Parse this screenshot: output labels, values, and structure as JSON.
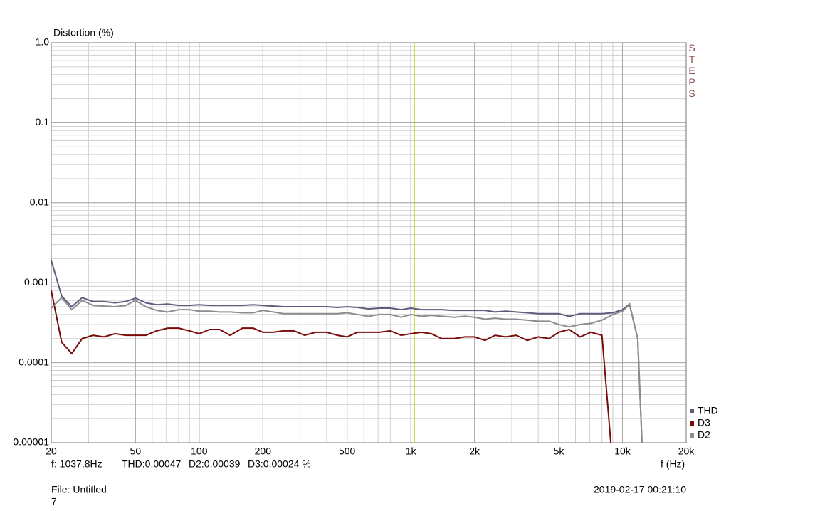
{
  "chart_data": {
    "type": "line",
    "title": "Distortion (%)",
    "x_label": "f (Hz)",
    "side_label": "STEPS",
    "log_x": true,
    "log_y": true,
    "grid": true,
    "minor_grid": true,
    "xlim": [
      20,
      20000
    ],
    "ylim": [
      1e-05,
      1
    ],
    "xticks": [
      20,
      50,
      100,
      200,
      500,
      {
        "value": 1000,
        "label": "1k"
      },
      {
        "value": 2000,
        "label": "2k"
      },
      {
        "value": 5000,
        "label": "5k"
      },
      {
        "value": 10000,
        "label": "10k"
      },
      {
        "value": 20000,
        "label": "20k"
      }
    ],
    "yticks": [
      {
        "value": 1,
        "label": "1.0"
      },
      0.1,
      0.01,
      0.001,
      0.0001,
      {
        "value": 1e-05,
        "label": "0.00001"
      }
    ],
    "cursor": 1037.8,
    "cursor_color": "#c8c800",
    "readout": [
      "f: 1037.8Hz",
      "THD:0.00047",
      "D2:0.00039",
      "D3:0.00024 %"
    ],
    "file": "File: Untitled",
    "file_index": "7",
    "timestamp": "2019-02-17 00:21:10",
    "legend": "bottom-right",
    "x": [
      20,
      22.4,
      25,
      28,
      31.5,
      35.5,
      40,
      45,
      50,
      56,
      63,
      71,
      80,
      90,
      100,
      112,
      125,
      140,
      160,
      180,
      200,
      224,
      250,
      280,
      315,
      355,
      400,
      450,
      500,
      560,
      630,
      710,
      800,
      900,
      1000,
      1120,
      1250,
      1400,
      1600,
      1800,
      2000,
      2240,
      2500,
      2800,
      3150,
      3550,
      4000,
      4500,
      5000,
      5600,
      6300,
      7100,
      8000,
      9000,
      10000,
      10800,
      11800,
      12500
    ],
    "series": [
      {
        "name": "THD",
        "color": "#5c5c7c",
        "values": [
          0.0019,
          0.00068,
          0.0005,
          0.00065,
          0.00058,
          0.00058,
          0.00056,
          0.00058,
          0.00064,
          0.00056,
          0.00053,
          0.00054,
          0.00052,
          0.00052,
          0.00053,
          0.00052,
          0.00052,
          0.00052,
          0.00052,
          0.00053,
          0.00052,
          0.00051,
          0.0005,
          0.0005,
          0.0005,
          0.0005,
          0.0005,
          0.00049,
          0.0005,
          0.00049,
          0.00047,
          0.00048,
          0.00048,
          0.00046,
          0.00048,
          0.00046,
          0.00046,
          0.00046,
          0.00045,
          0.00045,
          0.00045,
          0.00045,
          0.00043,
          0.00044,
          0.00043,
          0.00042,
          0.00041,
          0.00041,
          0.00041,
          0.00038,
          0.00041,
          0.00041,
          0.00041,
          0.00042,
          0.00046,
          0.00054,
          0.0002,
          5e-06
        ]
      },
      {
        "name": "D3",
        "color": "#7a0a0a",
        "values": [
          0.0008,
          0.00018,
          0.00013,
          0.0002,
          0.00022,
          0.00021,
          0.00023,
          0.00022,
          0.00022,
          0.00022,
          0.00025,
          0.00027,
          0.00027,
          0.00025,
          0.00023,
          0.00026,
          0.00026,
          0.00022,
          0.00027,
          0.00027,
          0.00024,
          0.00024,
          0.00025,
          0.00025,
          0.00022,
          0.00024,
          0.00024,
          0.00022,
          0.00021,
          0.00024,
          0.00024,
          0.00024,
          0.00025,
          0.00022,
          0.00023,
          0.00024,
          0.00023,
          0.0002,
          0.0002,
          0.00021,
          0.00021,
          0.00019,
          0.00022,
          0.00021,
          0.00022,
          0.00019,
          0.00021,
          0.0002,
          0.00024,
          0.00026,
          0.00021,
          0.00024,
          0.00022,
          5e-06,
          null,
          null,
          null,
          null
        ]
      },
      {
        "name": "D2",
        "color": "#8c8c8c",
        "values": [
          0.00048,
          0.00065,
          0.00046,
          0.0006,
          0.00052,
          0.00051,
          0.0005,
          0.00052,
          0.0006,
          0.0005,
          0.00045,
          0.00043,
          0.00046,
          0.00046,
          0.00044,
          0.00044,
          0.00043,
          0.00043,
          0.00042,
          0.00042,
          0.00045,
          0.00043,
          0.00041,
          0.00041,
          0.00041,
          0.00041,
          0.00041,
          0.00041,
          0.00042,
          0.0004,
          0.00038,
          0.0004,
          0.0004,
          0.00037,
          0.0004,
          0.00038,
          0.00039,
          0.00038,
          0.00037,
          0.00038,
          0.00037,
          0.00035,
          0.00036,
          0.00035,
          0.00035,
          0.00034,
          0.00033,
          0.00033,
          0.0003,
          0.00028,
          0.0003,
          0.00031,
          0.00034,
          0.0004,
          0.00044,
          0.00053,
          0.0002,
          5e-06
        ]
      }
    ]
  }
}
